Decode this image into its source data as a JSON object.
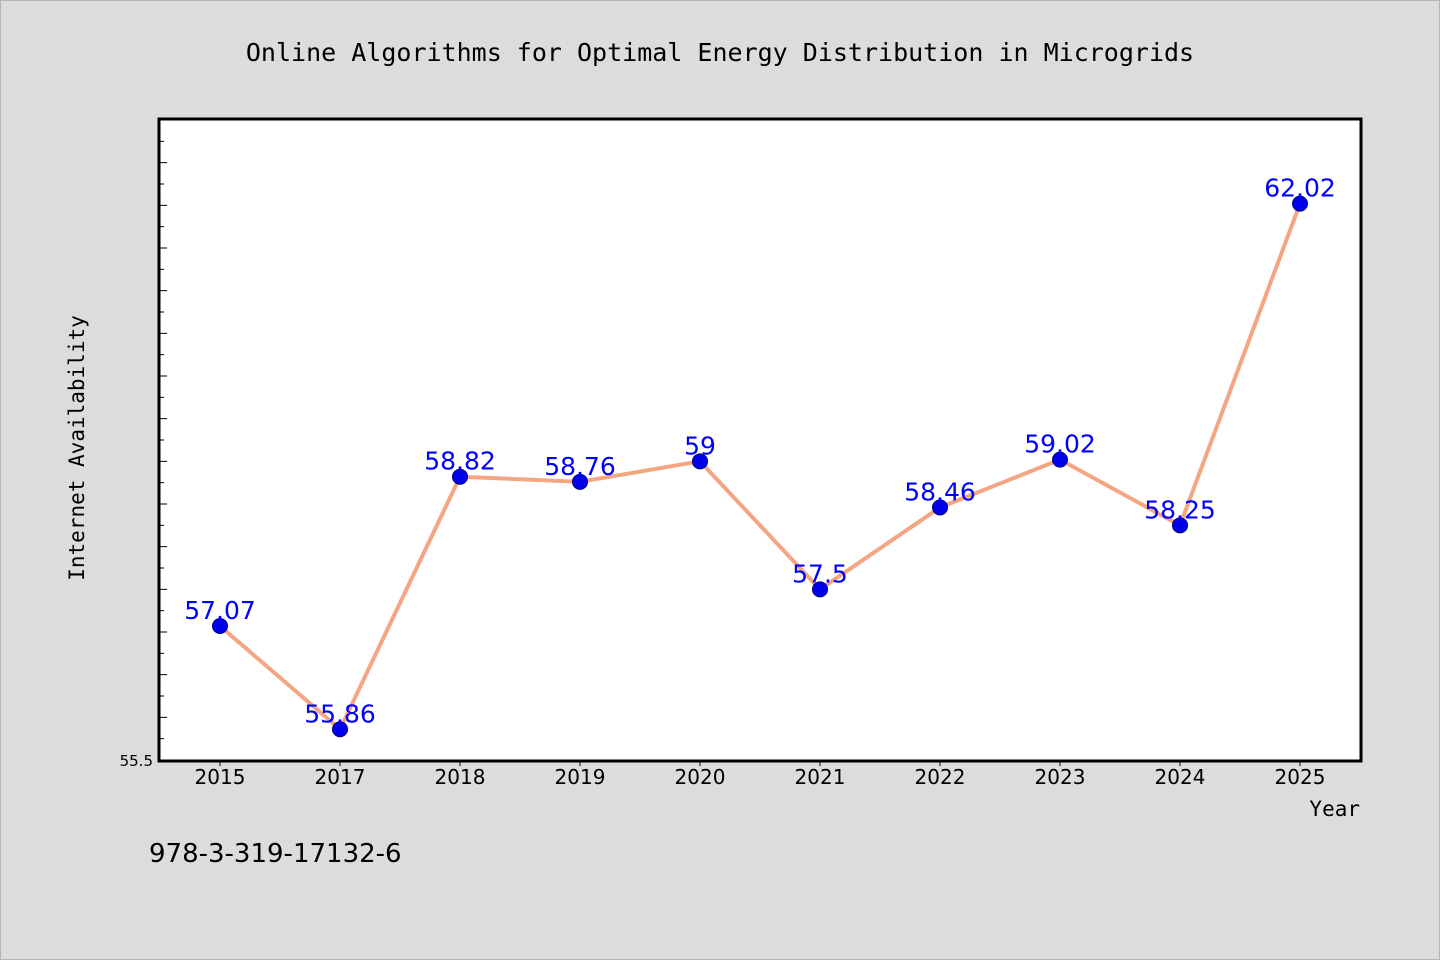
{
  "chart_data": {
    "type": "line",
    "title": "Online Algorithms for Optimal Energy Distribution in Microgrids",
    "xlabel": "Year",
    "ylabel": "Internet Availability",
    "categories": [
      "2015",
      "2017",
      "2018",
      "2019",
      "2020",
      "2021",
      "2022",
      "2023",
      "2024",
      "2025"
    ],
    "series": [
      {
        "values": [
          57.07,
          55.86,
          58.82,
          58.76,
          59,
          57.5,
          58.46,
          59.02,
          58.25,
          62.02
        ]
      }
    ],
    "data_labels": [
      "57.07",
      "55.86",
      "58.82",
      "58.76",
      "59",
      "57.5",
      "58.46",
      "59.02",
      "58.25",
      "62.02"
    ],
    "ylim": [
      55.5,
      63.0
    ],
    "y_min_label": "55.5",
    "grid": false,
    "line_color": "#f4a582",
    "marker_color": "#0000ee",
    "label_color": "#0000ff"
  },
  "footer": {
    "isbn": "978-3-319-17132-6"
  }
}
